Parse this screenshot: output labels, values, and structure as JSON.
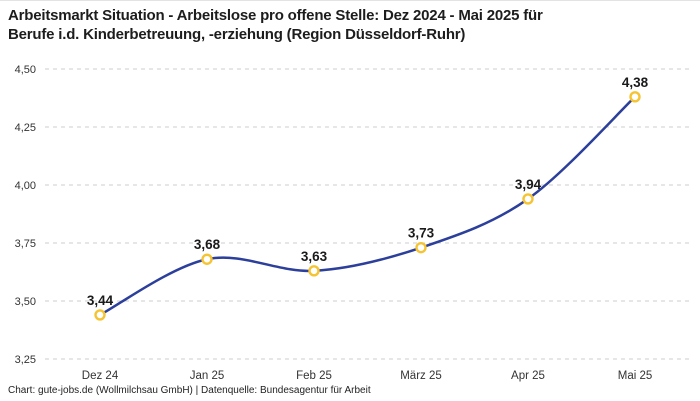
{
  "header": {
    "title": "Arbeitsmarkt Situation - Arbeitslose pro offene Stelle: Dez 2024 - Mai 2025 für Berufe i.d. Kinderbetreuung, -erziehung (Region Düsseldorf-Ruhr)",
    "title_line1": "Arbeitsmarkt Situation - Arbeitslose pro offene Stelle: Dez 2024 - Mai 2025 für",
    "title_line2": "Berufe i.d. Kinderbetreuung, -erziehung (Region Düsseldorf-Ruhr)"
  },
  "chart_data": {
    "type": "line",
    "categories": [
      "Dez 24",
      "Jan 25",
      "Feb 25",
      "März 25",
      "Apr 25",
      "Mai 25"
    ],
    "values": [
      3.44,
      3.68,
      3.63,
      3.73,
      3.94,
      4.38
    ],
    "point_labels": [
      "3,44",
      "3,68",
      "3,63",
      "3,73",
      "3,94",
      "4,38"
    ],
    "title": "Arbeitsmarkt Situation - Arbeitslose pro offene Stelle: Dez 2024 - Mai 2025 für Berufe i.d. Kinderbetreuung, -erziehung (Region Düsseldorf-Ruhr)",
    "xlabel": "",
    "ylabel": "",
    "ylim": [
      3.25,
      4.5
    ],
    "yticks": [
      4.5,
      4.25,
      4.0,
      3.75,
      3.5,
      3.25
    ],
    "ytick_labels": [
      "4,50",
      "4,25",
      "4,00",
      "3,75",
      "3,50",
      "3,25"
    ],
    "grid": "horizontal-dashed",
    "legend": "none",
    "line_smooth": true,
    "colors": {
      "line": "#2b3f9b",
      "marker_ring": "#f5c433",
      "marker_fill": "#ffffff",
      "grid": "#cccccc",
      "data_label": "#1a1a1a",
      "tick_label": "#333333"
    }
  },
  "footer": {
    "credit": "Chart: gute-jobs.de (Wollmilchsau GmbH) | Datenquelle: Bundesagentur für Arbeit"
  }
}
